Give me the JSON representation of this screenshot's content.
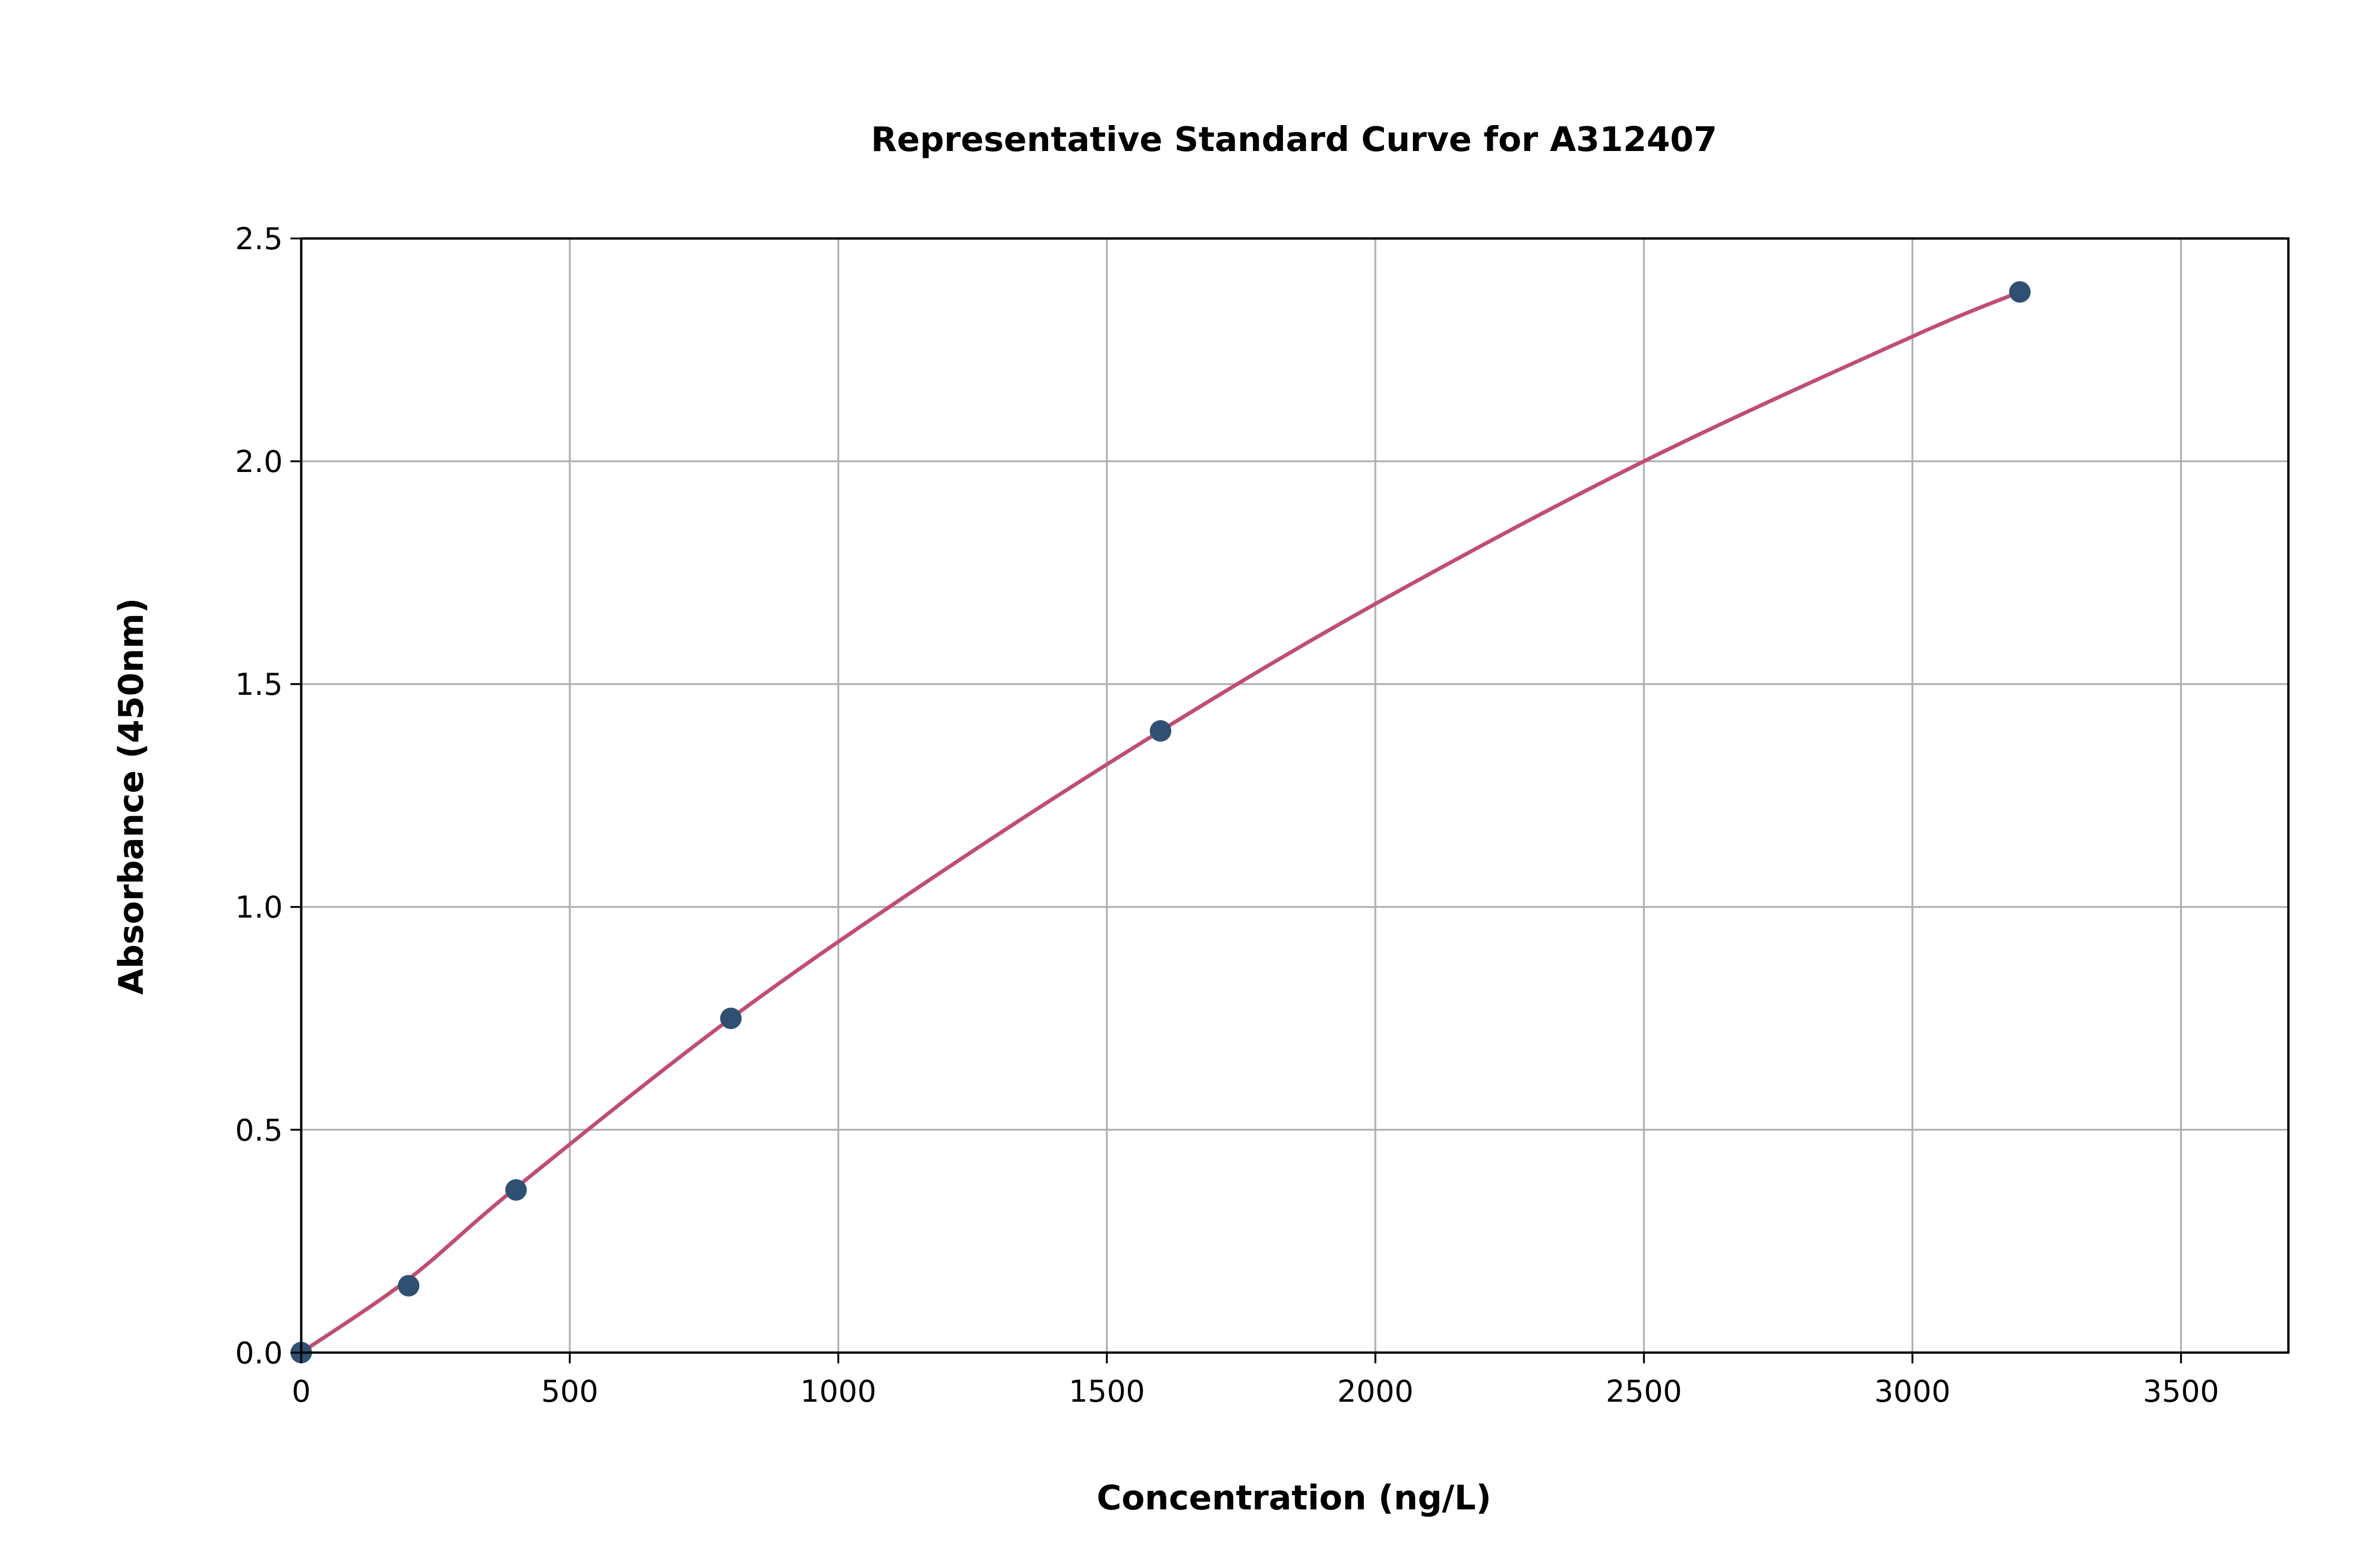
{
  "chart_data": {
    "type": "scatter",
    "title": "Representative Standard Curve for A312407",
    "xlabel": "Concentration (ng/L)",
    "ylabel": "Absorbance (450nm)",
    "xlim": [
      0,
      3700
    ],
    "ylim": [
      0,
      2.5
    ],
    "grid": true,
    "xticks": [
      "0",
      "500",
      "1000",
      "1500",
      "2000",
      "2500",
      "3000",
      "3500"
    ],
    "yticks": [
      "0.0",
      "0.5",
      "1.0",
      "1.5",
      "2.0",
      "2.5"
    ],
    "points": {
      "x": [
        0,
        200,
        400,
        800,
        1600,
        3200
      ],
      "y": [
        0.0,
        0.15,
        0.365,
        0.75,
        1.395,
        2.38
      ]
    },
    "fit_curve": {
      "x": [
        0,
        200,
        400,
        800,
        1200,
        1600,
        2000,
        2500,
        3000,
        3200
      ],
      "y": [
        0.0,
        0.165,
        0.37,
        0.75,
        1.085,
        1.395,
        1.68,
        2.0,
        2.28,
        2.38
      ]
    },
    "colors": {
      "points": "#2f5072",
      "curve": "#c04e72",
      "grid": "#b0b0b0"
    }
  }
}
